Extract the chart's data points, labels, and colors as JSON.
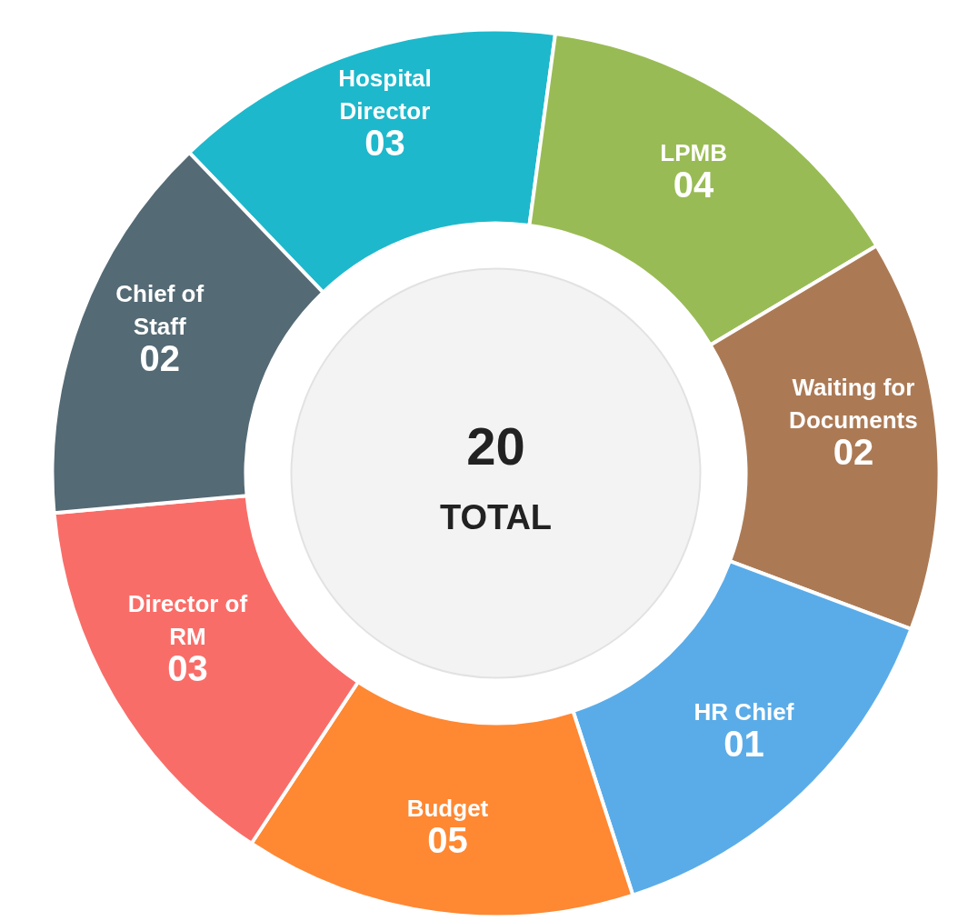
{
  "chart_data": {
    "type": "other",
    "annotations": [
      "20",
      "TOTAL"
    ],
    "categories": [
      "Hospital Director",
      "LPMB",
      "Waiting for Documents",
      "HR Chief",
      "Budget",
      "Director of RM",
      "Chief of Staff"
    ],
    "values": [
      3,
      4,
      2,
      1,
      5,
      3,
      2
    ],
    "value_labels": [
      "03",
      "04",
      "02",
      "01",
      "05",
      "03",
      "02"
    ],
    "colors": [
      "#1eb8cc",
      "#99bb55",
      "#ab7a55",
      "#5aace8",
      "#ff8833",
      "#f96d68",
      "#546a75"
    ]
  }
}
